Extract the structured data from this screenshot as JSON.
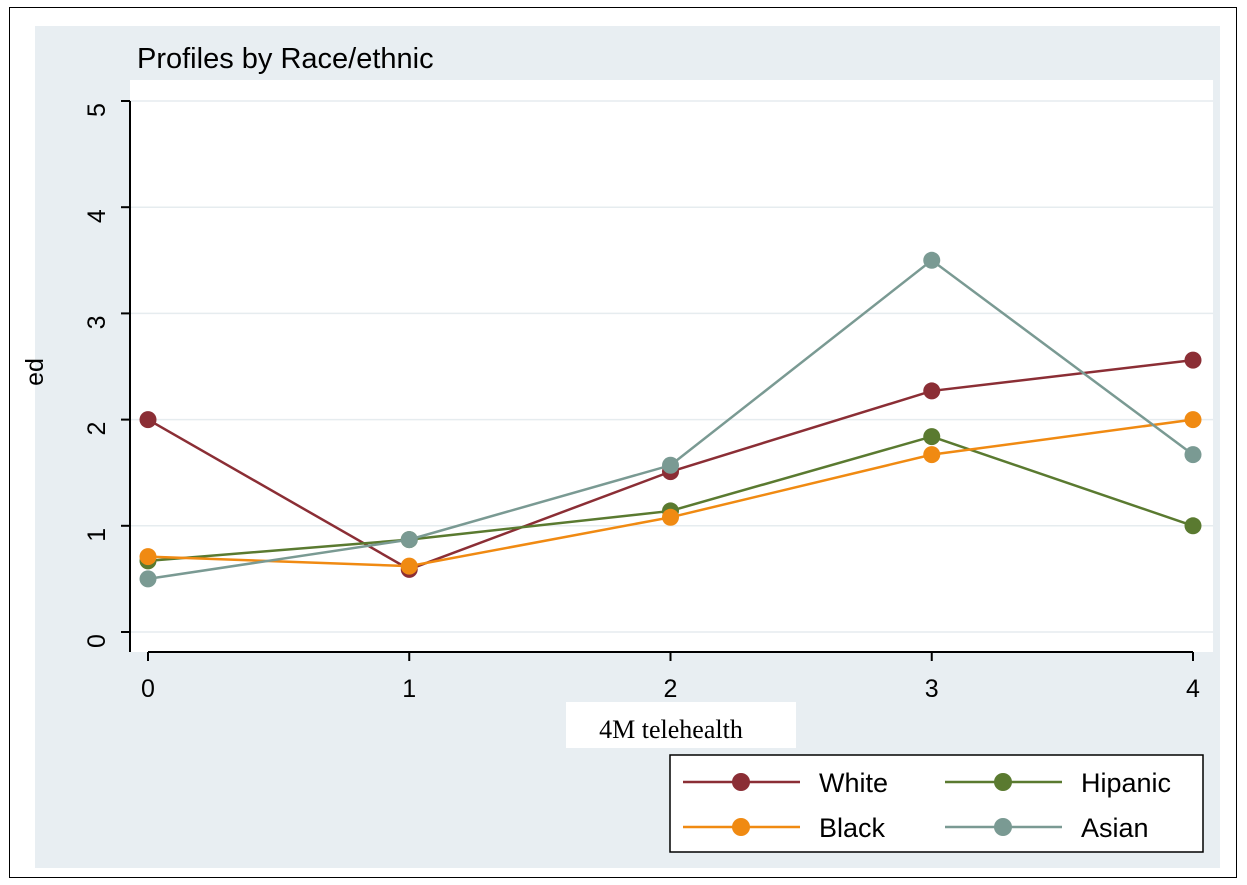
{
  "chart_data": {
    "type": "line",
    "title": "Profiles by Race/ethnic",
    "xlabel": "4M telehealth",
    "ylabel": "ed",
    "x": [
      0,
      1,
      2,
      3,
      4
    ],
    "xlim": [
      0,
      4
    ],
    "ylim": [
      0,
      5
    ],
    "xticks": [
      "0",
      "1",
      "2",
      "3",
      "4"
    ],
    "yticks": [
      "0",
      "1",
      "2",
      "3",
      "4",
      "5"
    ],
    "grid": true,
    "legend_position": "bottom-right",
    "series": [
      {
        "name": "White",
        "color": "#8b2e35",
        "values": [
          2.0,
          0.59,
          1.51,
          2.27,
          2.56
        ]
      },
      {
        "name": "Hipanic",
        "color": "#5a7a30",
        "values": [
          0.67,
          0.87,
          1.14,
          1.84,
          1.0
        ]
      },
      {
        "name": "Black",
        "color": "#f08a12",
        "values": [
          0.71,
          0.62,
          1.08,
          1.67,
          2.0
        ]
      },
      {
        "name": "Asian",
        "color": "#7a9a93",
        "values": [
          0.5,
          0.87,
          1.57,
          3.5,
          1.67
        ]
      }
    ],
    "legend_order": [
      "White",
      "Hipanic",
      "Black",
      "Asian"
    ],
    "colors": {
      "outer_background": "#e8eef2",
      "plot_background": "#ffffff",
      "grid": "#e6ecef"
    }
  }
}
